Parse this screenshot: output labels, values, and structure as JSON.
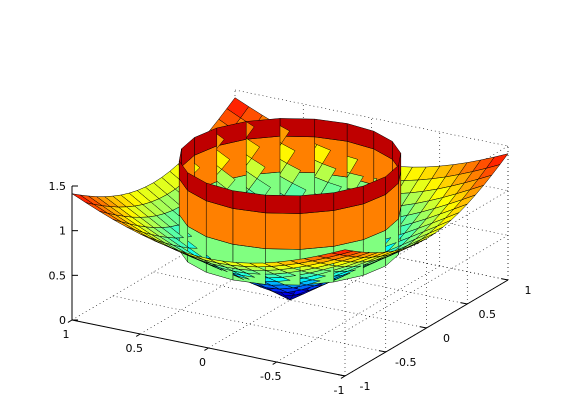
{
  "chart_data": {
    "type": "surface3d",
    "title": "",
    "xlabel": "",
    "ylabel": "",
    "zlabel": "",
    "xlim": [
      -1,
      1
    ],
    "ylim": [
      -1,
      1
    ],
    "zlim": [
      0,
      1.5
    ],
    "x_ticks": [
      {
        "value": -1,
        "label": "-1"
      },
      {
        "value": -0.5,
        "label": "-0.5"
      },
      {
        "value": 0,
        "label": "0"
      },
      {
        "value": 0.5,
        "label": "0.5"
      },
      {
        "value": 1,
        "label": "1"
      }
    ],
    "y_ticks": [
      {
        "value": -1,
        "label": "-1"
      },
      {
        "value": -0.5,
        "label": "-0.5"
      },
      {
        "value": 0,
        "label": "0"
      },
      {
        "value": 0.5,
        "label": "0.5"
      },
      {
        "value": 1,
        "label": "1"
      }
    ],
    "z_ticks": [
      {
        "value": 0,
        "label": "0"
      },
      {
        "value": 0.5,
        "label": "0.5"
      },
      {
        "value": 1,
        "label": "1"
      },
      {
        "value": 1.5,
        "label": "1.5"
      }
    ],
    "grid": true,
    "colormap": "jet",
    "colormap_stops": [
      "#00008f",
      "#0000ff",
      "#00ffff",
      "#ffff00",
      "#ff0000",
      "#800000"
    ],
    "series": [
      {
        "kind": "mesh",
        "function": "z = sqrt(x^2 + y^2)",
        "x_range": [
          -1,
          1
        ],
        "y_range": [
          -1,
          1
        ],
        "grid_size": 21
      },
      {
        "kind": "cylinder",
        "radius": 0.7,
        "z_values": [
          0.6,
          1.0,
          1.4,
          1.6
        ],
        "segments": 20
      }
    ]
  }
}
